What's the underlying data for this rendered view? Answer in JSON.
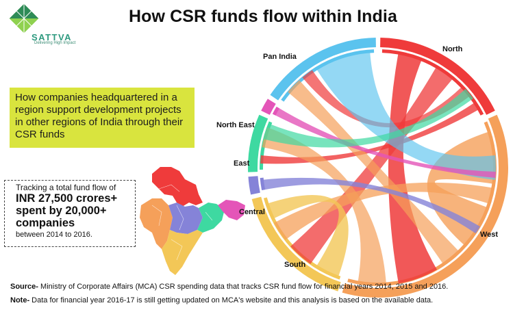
{
  "title": "How CSR funds flow within India",
  "logo": {
    "name": "SATTVA",
    "tagline": "Delivering High Impact",
    "icon": "green-diamond-logo-icon"
  },
  "callout": "How companies headquartered in a region support development projects in other regions of India through their CSR funds",
  "stats": {
    "line1": "Tracking a total fund flow of",
    "line2": "INR 27,500 crores+",
    "line3": "spent by 20,000+",
    "line3b": "companies",
    "line4": "between 2014 to 2016."
  },
  "regions": [
    {
      "name": "North",
      "color": "#ef3b3b"
    },
    {
      "name": "West",
      "color": "#f5a05a"
    },
    {
      "name": "South",
      "color": "#f3c757"
    },
    {
      "name": "Central",
      "color": "#8583d8"
    },
    {
      "name": "East",
      "color": "#3ed9a1"
    },
    {
      "name": "North East",
      "color": "#e455b8"
    },
    {
      "name": "Pan India",
      "color": "#5bc3ee"
    }
  ],
  "notes": {
    "source_label": "Source-",
    "source_text": "Ministry of Corporate Affairs (MCA) CSR spending data that tracks CSR fund flow for financial years 2014, 2015 and 2016.",
    "note_label": "Note-",
    "note_text": "Data for financial year 2016-17 is still getting updated on MCA's website and this analysis is based on the available data."
  }
}
